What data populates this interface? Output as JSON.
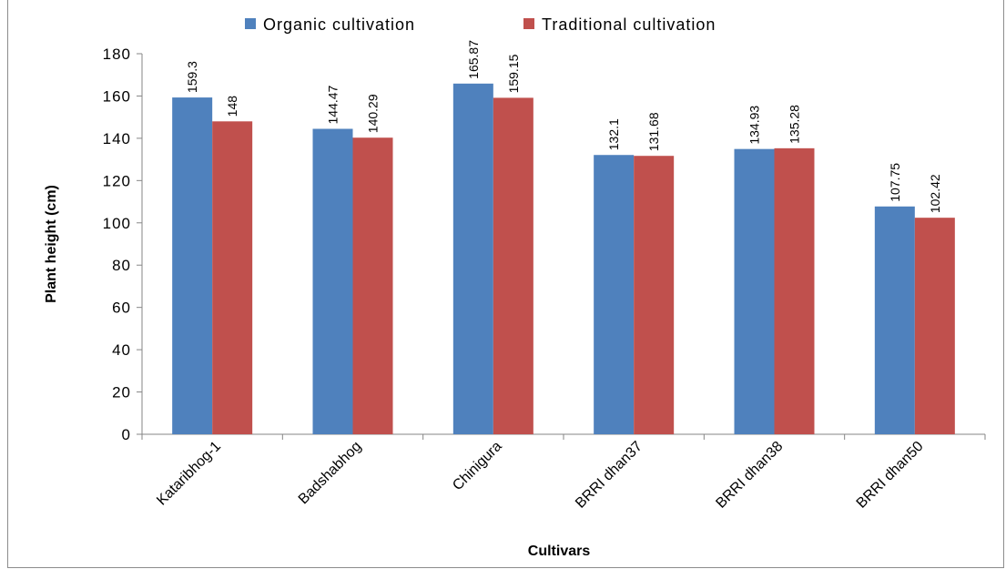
{
  "chart_data": {
    "type": "bar",
    "categories": [
      "Kataribhog-1",
      "Badshabhog",
      "Chinigura",
      "BRRI dhan37",
      "BRRI dhan38",
      "BRRI dhan50"
    ],
    "series": [
      {
        "name": "Organic cultivation",
        "color": "#4F81BD",
        "values": [
          159.3,
          144.47,
          165.87,
          132.1,
          134.93,
          107.75
        ],
        "labels": [
          "159.3",
          "144.47",
          "165.87",
          "132.1",
          "134.93",
          "107.75"
        ]
      },
      {
        "name": "Traditional cultivation",
        "color": "#C0504D",
        "values": [
          148,
          140.29,
          159.15,
          131.68,
          135.28,
          102.42
        ],
        "labels": [
          "148",
          "140.29",
          "159.15",
          "131.68",
          "135.28",
          "102.42"
        ]
      }
    ],
    "xlabel": "Cultivars",
    "ylabel": "Plant height (cm)",
    "ylim": [
      0,
      180
    ],
    "yticks": [
      "0",
      "20",
      "40",
      "60",
      "80",
      "100",
      "120",
      "140",
      "160",
      "180"
    ],
    "grid": false,
    "legend_position": "top"
  }
}
